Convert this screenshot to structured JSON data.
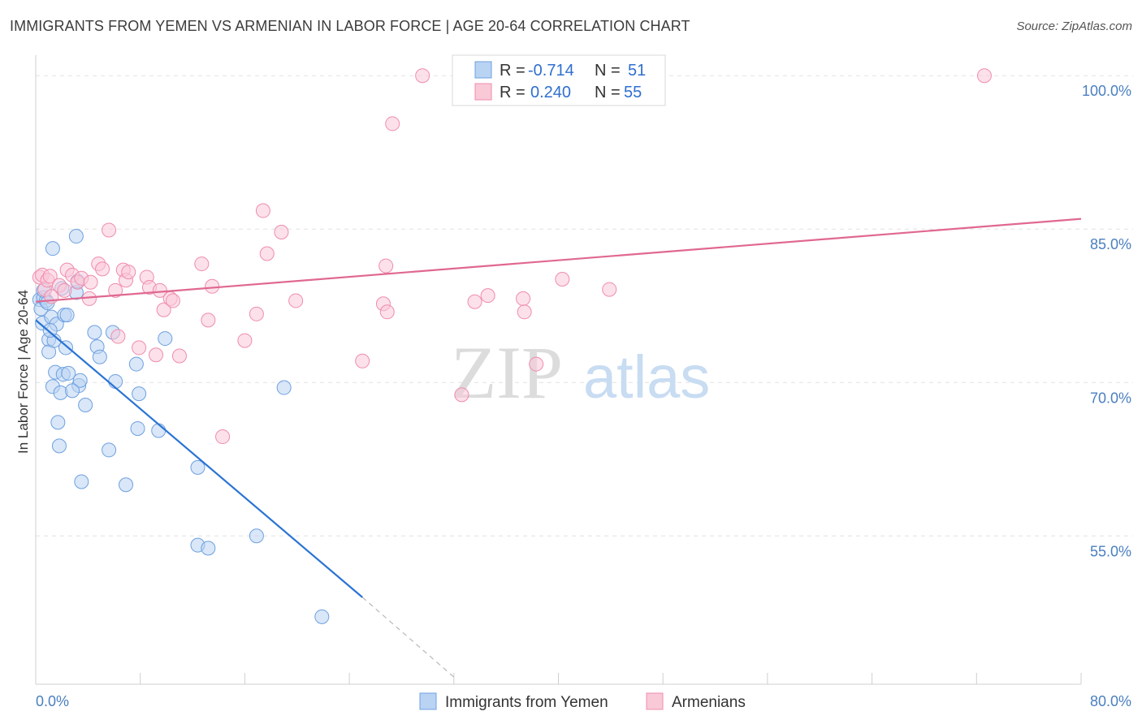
{
  "title": "IMMIGRANTS FROM YEMEN VS ARMENIAN IN LABOR FORCE | AGE 20-64 CORRELATION CHART",
  "source": "Source: ZipAtlas.com",
  "watermark": {
    "zip": "ZIP",
    "atlas": "atlas"
  },
  "legend": {
    "rows": [
      {
        "r_label": "R =",
        "r_value": "-0.714",
        "n_label": "N =",
        "n_value": "51",
        "color": "#a9c8f0"
      },
      {
        "r_label": "R =",
        "r_value": "0.240",
        "n_label": "N =",
        "n_value": "55",
        "color": "#f6b8cc"
      }
    ]
  },
  "chart_data": {
    "type": "scatter",
    "xlabel": "",
    "ylabel": "In Labor Force | Age 20-64",
    "xlim": [
      0,
      80
    ],
    "ylim": [
      40.5,
      102
    ],
    "x_tick_labels": [
      "0.0%",
      "80.0%"
    ],
    "y_ticks": [
      55,
      70,
      85,
      100
    ],
    "y_tick_labels": [
      "55.0%",
      "70.0%",
      "85.0%",
      "100.0%"
    ],
    "grid": true,
    "legend_position": "bottom",
    "series": [
      {
        "name": "Immigrants from Yemen",
        "color": "#6ea0e0",
        "fill": "#b9d3f3",
        "line_color": "#2a74d3",
        "trend": {
          "x0": 0.0,
          "y0": 76.1,
          "x1": 25.0,
          "y1": 49.0,
          "dash_to_x": 32.0,
          "dash_to_y": 41.2
        },
        "points": [
          [
            0.3,
            78.1
          ],
          [
            0.4,
            77.2
          ],
          [
            0.5,
            75.8
          ],
          [
            0.6,
            78.3
          ],
          [
            0.8,
            78.0
          ],
          [
            1.0,
            74.2
          ],
          [
            1.0,
            73.0
          ],
          [
            1.2,
            76.4
          ],
          [
            1.3,
            69.6
          ],
          [
            1.4,
            74.1
          ],
          [
            1.5,
            71.0
          ],
          [
            1.6,
            75.7
          ],
          [
            1.7,
            66.1
          ],
          [
            1.8,
            63.8
          ],
          [
            1.9,
            69.0
          ],
          [
            2.0,
            79.2
          ],
          [
            2.1,
            70.8
          ],
          [
            2.2,
            76.6
          ],
          [
            2.3,
            73.4
          ],
          [
            2.4,
            76.6
          ],
          [
            2.5,
            70.9
          ],
          [
            1.3,
            83.1
          ],
          [
            3.1,
            84.3
          ],
          [
            3.1,
            78.8
          ],
          [
            3.2,
            79.9
          ],
          [
            3.3,
            69.7
          ],
          [
            3.4,
            70.2
          ],
          [
            3.5,
            60.3
          ],
          [
            3.8,
            67.8
          ],
          [
            4.5,
            74.9
          ],
          [
            4.7,
            73.5
          ],
          [
            4.9,
            72.5
          ],
          [
            5.6,
            63.4
          ],
          [
            5.9,
            74.9
          ],
          [
            6.1,
            70.1
          ],
          [
            6.9,
            60.0
          ],
          [
            7.7,
            71.8
          ],
          [
            7.8,
            65.5
          ],
          [
            7.9,
            68.9
          ],
          [
            9.4,
            65.3
          ],
          [
            9.9,
            74.3
          ],
          [
            12.4,
            61.7
          ],
          [
            12.4,
            54.1
          ],
          [
            13.2,
            53.8
          ],
          [
            16.9,
            55.0
          ],
          [
            19.0,
            69.5
          ],
          [
            21.9,
            47.1
          ],
          [
            0.6,
            79.0
          ],
          [
            0.9,
            77.8
          ],
          [
            2.8,
            69.2
          ],
          [
            1.1,
            75.1
          ]
        ]
      },
      {
        "name": "Armenians",
        "color": "#f08cac",
        "fill": "#f9c9d8",
        "line_color": "#e06890",
        "trend": {
          "x0": 0.0,
          "y0": 77.9,
          "x1": 80.0,
          "y1": 86.0
        },
        "points": [
          [
            0.3,
            80.3
          ],
          [
            0.5,
            80.5
          ],
          [
            0.7,
            79.1
          ],
          [
            0.9,
            80.0
          ],
          [
            1.1,
            80.4
          ],
          [
            1.2,
            78.4
          ],
          [
            1.8,
            79.5
          ],
          [
            2.2,
            79.0
          ],
          [
            2.4,
            81.0
          ],
          [
            2.8,
            80.5
          ],
          [
            3.2,
            79.8
          ],
          [
            3.5,
            80.2
          ],
          [
            4.1,
            78.2
          ],
          [
            4.2,
            79.8
          ],
          [
            4.8,
            81.6
          ],
          [
            5.1,
            81.1
          ],
          [
            5.6,
            84.9
          ],
          [
            6.1,
            79.0
          ],
          [
            6.3,
            74.5
          ],
          [
            6.7,
            81.0
          ],
          [
            6.9,
            80.0
          ],
          [
            7.1,
            80.8
          ],
          [
            7.9,
            73.4
          ],
          [
            8.5,
            80.3
          ],
          [
            8.7,
            79.3
          ],
          [
            9.2,
            72.7
          ],
          [
            9.5,
            79.0
          ],
          [
            9.8,
            77.1
          ],
          [
            10.3,
            78.2
          ],
          [
            10.5,
            78.0
          ],
          [
            11.0,
            72.6
          ],
          [
            12.7,
            81.6
          ],
          [
            13.2,
            76.1
          ],
          [
            13.5,
            79.4
          ],
          [
            14.3,
            64.7
          ],
          [
            16.0,
            74.1
          ],
          [
            16.9,
            76.7
          ],
          [
            17.4,
            86.8
          ],
          [
            17.7,
            82.6
          ],
          [
            18.8,
            84.7
          ],
          [
            19.9,
            78.0
          ],
          [
            25.0,
            72.1
          ],
          [
            26.6,
            77.7
          ],
          [
            26.8,
            81.4
          ],
          [
            26.9,
            76.9
          ],
          [
            27.3,
            95.3
          ],
          [
            29.6,
            100.0
          ],
          [
            32.6,
            68.8
          ],
          [
            33.6,
            77.9
          ],
          [
            34.6,
            78.5
          ],
          [
            37.3,
            78.2
          ],
          [
            37.4,
            76.9
          ],
          [
            38.3,
            71.8
          ],
          [
            40.3,
            80.1
          ],
          [
            43.9,
            79.1
          ]
        ],
        "extra_points": [
          [
            72.6,
            100.0
          ]
        ]
      }
    ]
  }
}
